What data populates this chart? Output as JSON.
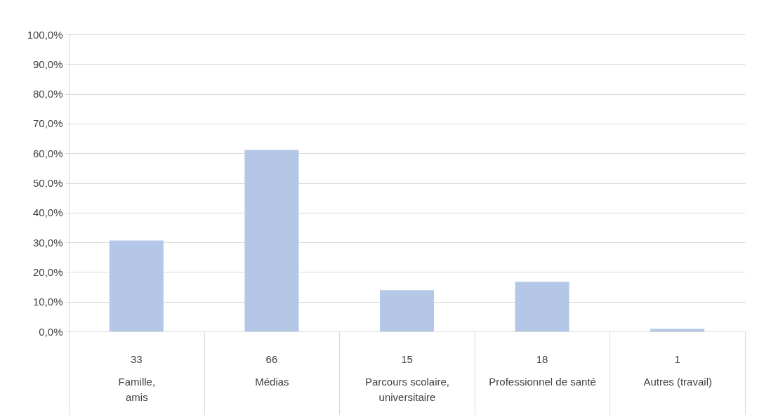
{
  "chart_data": {
    "type": "bar",
    "categories": [
      "Famille, amis",
      "Médias",
      "Parcours scolaire, universitaire",
      "Professionnel de santé",
      "Autres (travail)"
    ],
    "values": [
      30.6,
      61.1,
      13.9,
      16.7,
      0.9
    ],
    "annotations": [
      "33",
      "66",
      "15",
      "18",
      "1"
    ],
    "color": "#b4c7e7",
    "ylim": [
      0,
      100
    ],
    "yticks": [
      {
        "value": 0,
        "label": "0,0%"
      },
      {
        "value": 10,
        "label": "10,0%"
      },
      {
        "value": 20,
        "label": "20,0%"
      },
      {
        "value": 30,
        "label": "30,0%"
      },
      {
        "value": 40,
        "label": "40,0%"
      },
      {
        "value": 50,
        "label": "50,0%"
      },
      {
        "value": 60,
        "label": "60,0%"
      },
      {
        "value": 70,
        "label": "70,0%"
      },
      {
        "value": 80,
        "label": "80,0%"
      },
      {
        "value": 90,
        "label": "90,0%"
      },
      {
        "value": 100,
        "label": "100,0%"
      }
    ],
    "grid": "y"
  }
}
